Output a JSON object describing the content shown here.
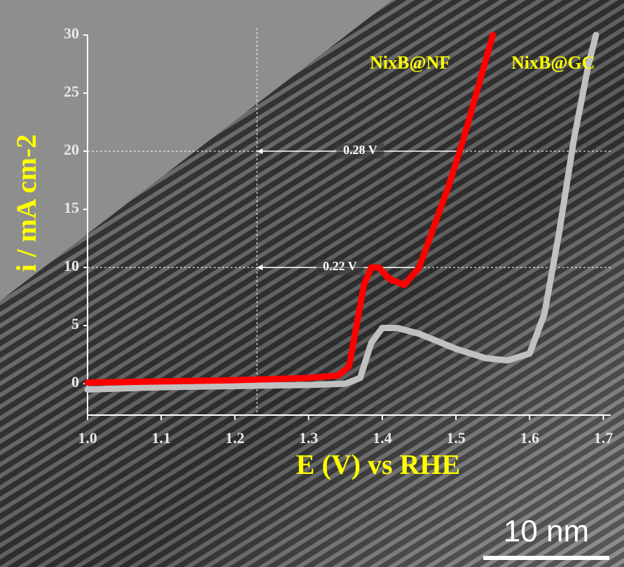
{
  "chart_data": {
    "type": "line",
    "xlabel": "E (V) vs RHE",
    "ylabel": "i / mA cm-2",
    "xlim": [
      1.0,
      1.71
    ],
    "ylim": [
      -2.7,
      30
    ],
    "xticks": [
      {
        "value": 1.0,
        "label": "1.0"
      },
      1.1,
      1.2,
      1.3,
      1.4,
      1.5,
      1.6,
      1.7
    ],
    "yticks": [
      0,
      5,
      10,
      15,
      20,
      25,
      30
    ],
    "ref_x": [
      1.23
    ],
    "ref_y": [
      10,
      20
    ],
    "annotations": [
      {
        "text": "0.28 V",
        "x": [
          1.23,
          1.51
        ],
        "y": 20
      },
      {
        "text": "0.22 V",
        "x": [
          1.23,
          1.455
        ],
        "y": 10
      }
    ],
    "series": [
      {
        "name": "NixB@NF",
        "color": "#ff0000",
        "x": [
          1.0,
          1.1,
          1.2,
          1.3,
          1.34,
          1.355,
          1.365,
          1.375,
          1.385,
          1.395,
          1.41,
          1.43,
          1.45,
          1.47,
          1.49,
          1.51,
          1.53,
          1.55
        ],
        "values": [
          0.1,
          0.2,
          0.3,
          0.5,
          0.7,
          1.5,
          5,
          8.5,
          10,
          10,
          9,
          8.5,
          10,
          13.5,
          17,
          21,
          25.5,
          30
        ]
      },
      {
        "name": "NixB@GC",
        "color": "#c0c0c0",
        "x": [
          1.0,
          1.1,
          1.2,
          1.3,
          1.35,
          1.37,
          1.385,
          1.4,
          1.42,
          1.45,
          1.5,
          1.54,
          1.57,
          1.6,
          1.62,
          1.64,
          1.66,
          1.68,
          1.69
        ],
        "values": [
          -0.5,
          -0.3,
          -0.2,
          -0.1,
          0,
          0.5,
          3.5,
          4.8,
          4.8,
          4.3,
          3,
          2.2,
          2,
          2.6,
          6,
          13,
          21,
          27.5,
          30
        ]
      }
    ],
    "scale_bar": "10 nm"
  }
}
